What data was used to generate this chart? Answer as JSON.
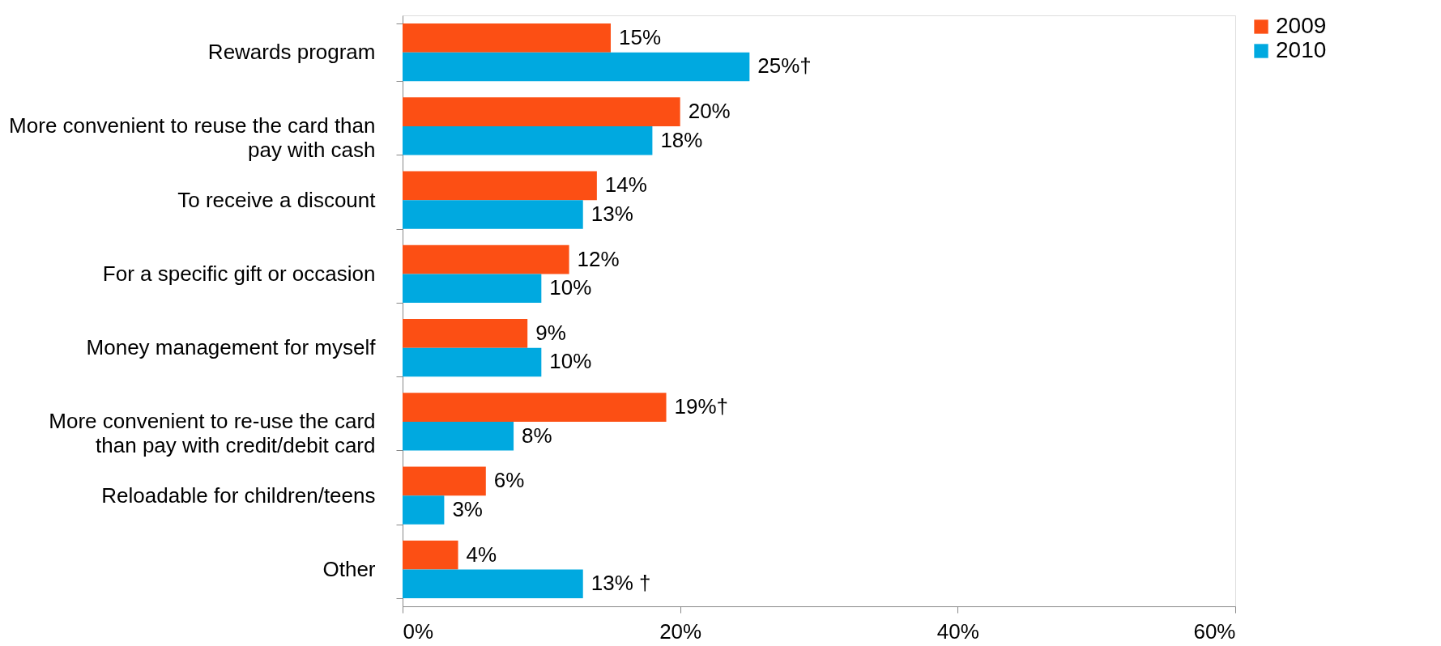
{
  "chart_data": {
    "type": "bar",
    "orientation": "horizontal",
    "categories": [
      "Rewards program",
      "More convenient to reuse the card than pay with cash",
      "To receive a discount",
      "For a specific gift or occasion",
      "Money management for myself",
      "More convenient to re-use the card than pay with credit/debit card",
      "Reloadable for children/teens",
      "Other"
    ],
    "series": [
      {
        "name": "2009",
        "color": "#fc4f14",
        "values": [
          15,
          20,
          14,
          12,
          9,
          19,
          6,
          4
        ],
        "value_labels": [
          "15%",
          "20%",
          "14%",
          "12%",
          "9%",
          "19%†",
          "6%",
          "4%"
        ]
      },
      {
        "name": "2010",
        "color": "#00a9e0",
        "values": [
          25,
          18,
          13,
          10,
          10,
          8,
          3,
          13
        ],
        "value_labels": [
          "25%†",
          "18%",
          "13%",
          "10%",
          "10%",
          "8%",
          "3%",
          "13% †"
        ]
      }
    ],
    "xlim": [
      0,
      60
    ],
    "xticks": [
      {
        "value": 0,
        "label": "0%"
      },
      {
        "value": 20,
        "label": "20%"
      },
      {
        "value": 40,
        "label": "40%"
      },
      {
        "value": 60,
        "label": "60%"
      }
    ],
    "grid": false,
    "legend": "top right"
  }
}
